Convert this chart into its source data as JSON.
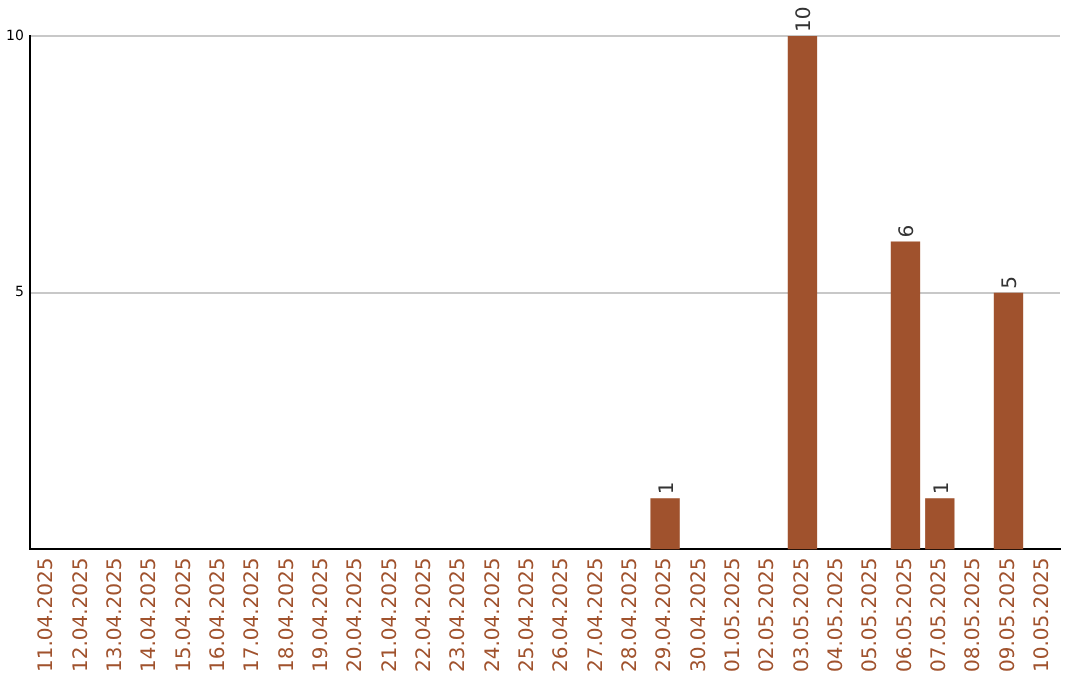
{
  "chart_data": {
    "type": "bar",
    "categories": [
      "11.04.2025",
      "12.04.2025",
      "13.04.2025",
      "14.04.2025",
      "15.04.2025",
      "16.04.2025",
      "17.04.2025",
      "18.04.2025",
      "19.04.2025",
      "20.04.2025",
      "21.04.2025",
      "22.04.2025",
      "23.04.2025",
      "24.04.2025",
      "25.04.2025",
      "26.04.2025",
      "27.04.2025",
      "28.04.2025",
      "29.04.2025",
      "30.04.2025",
      "01.05.2025",
      "02.05.2025",
      "03.05.2025",
      "04.05.2025",
      "05.05.2025",
      "06.05.2025",
      "07.05.2025",
      "08.05.2025",
      "09.05.2025",
      "10.05.2025"
    ],
    "values": [
      0,
      0,
      0,
      0,
      0,
      0,
      0,
      0,
      0,
      0,
      0,
      0,
      0,
      0,
      0,
      0,
      0,
      0,
      1,
      0,
      0,
      0,
      10,
      0,
      0,
      6,
      1,
      0,
      5,
      0
    ],
    "value_labels": [
      null,
      null,
      null,
      null,
      null,
      null,
      null,
      null,
      null,
      null,
      null,
      null,
      null,
      null,
      null,
      null,
      null,
      null,
      "1",
      null,
      null,
      null,
      "10",
      null,
      null,
      "6",
      "1",
      null,
      "5",
      null
    ],
    "color": "#a0522d",
    "ylim": [
      0,
      10
    ],
    "yticks": [
      5,
      10
    ],
    "grid": "y",
    "legend": false
  }
}
